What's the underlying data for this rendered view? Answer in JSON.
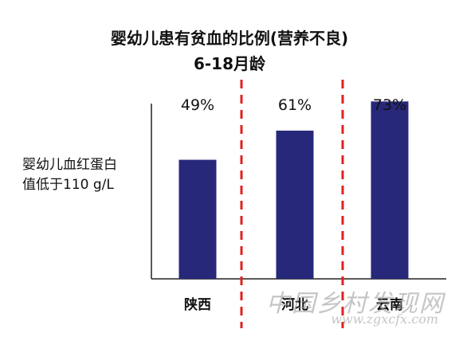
{
  "chart_data": {
    "type": "bar",
    "title": "婴幼儿患有贫血的比例(营养不良)",
    "subtitle": "6-18月龄",
    "ylabel_lines": [
      "婴幼儿血红蛋白",
      "值低于110 g/L"
    ],
    "categories": [
      "陕西",
      "河北",
      "云南"
    ],
    "values": [
      49,
      61,
      73
    ],
    "value_labels": [
      "49%",
      "61%",
      "73%"
    ],
    "ylim": [
      0,
      100
    ],
    "bar_color": "#27287a",
    "divider_color": "#e02020"
  },
  "watermark": {
    "main": "中国乡村发现网",
    "url": "www.zgxcfx.com"
  }
}
